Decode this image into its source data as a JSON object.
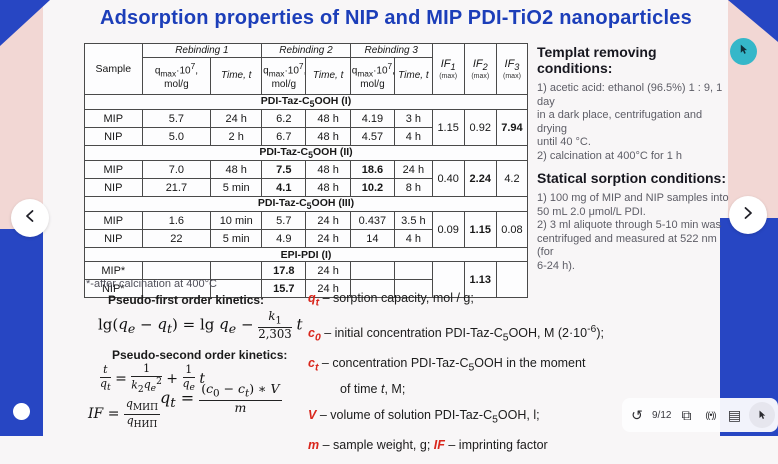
{
  "title": "Adsorption properties of NIP and MIP PDI-TiO2 nanoparticles",
  "table": {
    "col_sample": "Sample",
    "rebinding_headers": [
      "Rebinding 1",
      "Rebinding 2",
      "Rebinding 3"
    ],
    "q_header": "q<sub>max</sub>·10<sup>7</sup>, mol/g",
    "time_header": "Time, <i>t</i>",
    "if_headers": [
      {
        "main": "<i>IF</i><sub>1</sub>",
        "sub": "(max)"
      },
      {
        "main": "<i>IF</i><sub>2</sub>",
        "sub": "(max)"
      },
      {
        "main": "<i>IF</i><sub>3</sub>",
        "sub": "(max)"
      }
    ],
    "sections": [
      {
        "name": "PDI-Taz-C<sub>5</sub>OOH (I)",
        "rows": [
          {
            "sample": "MIP",
            "cells": [
              "5.7",
              "24 h",
              "6.2",
              "48 h",
              "4.19",
              "3 h"
            ]
          },
          {
            "sample": "NIP",
            "cells": [
              "5.0",
              "2 h",
              "6.7",
              "48 h",
              "4.57",
              "4 h"
            ]
          }
        ],
        "if": [
          "1.15",
          "0.92",
          {
            "t": "7.94",
            "b": 1
          }
        ]
      },
      {
        "name": "PDI-Taz-C<sub>5</sub>OOH (II)",
        "rows": [
          {
            "sample": "MIP",
            "cells": [
              "7.0",
              "48 h",
              {
                "t": "7.5",
                "b": 1
              },
              "48 h",
              {
                "t": "18.6",
                "b": 1
              },
              "24 h"
            ]
          },
          {
            "sample": "NIP",
            "cells": [
              "21.7",
              "5 min",
              {
                "t": "4.1",
                "b": 1
              },
              "48 h",
              {
                "t": "10.2",
                "b": 1
              },
              "8 h"
            ]
          }
        ],
        "if": [
          "0.40",
          {
            "t": "2.24",
            "b": 1
          },
          "4.2"
        ]
      },
      {
        "name": "PDI-Taz-C<sub>5</sub>OOH (III)",
        "rows": [
          {
            "sample": "MIP",
            "cells": [
              "1.6",
              "10 min",
              "5.7",
              "24 h",
              "0.437",
              "3.5 h"
            ]
          },
          {
            "sample": "NIP",
            "cells": [
              "22",
              "5 min",
              "4.9",
              "24 h",
              "14",
              "4 h"
            ]
          }
        ],
        "if": [
          "0.09",
          {
            "t": "1.15",
            "b": 1
          },
          "0.08"
        ]
      },
      {
        "name": "EPI-PDI (I)",
        "rows": [
          {
            "sample": "MIP*",
            "cells": [
              "",
              "",
              {
                "t": "17.8",
                "b": 1
              },
              "24 h",
              "",
              ""
            ]
          },
          {
            "sample": "NIP*",
            "cells": [
              "",
              "",
              {
                "t": "15.7",
                "b": 1
              },
              "24 h",
              "",
              ""
            ]
          }
        ],
        "if": [
          "",
          {
            "t": "1.13",
            "b": 1
          },
          ""
        ]
      }
    ],
    "footnote": "*-after calcination at 400°C"
  },
  "template_conditions": {
    "title": "Templat removing conditions:",
    "lines": [
      "1) acetic acid: ethanol (96.5%) 1 : 9, 1 day",
      "in a dark place, centrifugation and drying",
      "until 40 °C.",
      "2) calcination at 400°C for 1 h"
    ]
  },
  "sorption_conditions": {
    "title": "Statical sorption conditions:",
    "lines": [
      "1) 100 mg of MIP and NIP samples into",
      "50 mL 2.0 μmol/L PDI.",
      "2) 3 ml aliquote through 5-10 min was",
      "centrifuged and measured at 522 nm (for",
      "6-24 h)."
    ]
  },
  "kinetics": {
    "first_label": "Pseudo-first order kinetics:",
    "second_label": "Pseudo-second order kinetics:",
    "eq_first": "lg(<i>q<sub>e</sub></i> − <i>q<sub>t</sub></i>) = lg <i>q<sub>e</sub></i> − <span class='fr'><span><i>k</i><sub>1</sub></span><span>2,303</span></span> <i>t</i>",
    "eq_second": "<span class='fr'><span><i>t</i></span><span><i>q<sub>t</sub></i></span></span> = <span class='fr'><span>1</span><span><i>k</i><sub>2</sub><i>q<sub>e</sub></i><sup>2</sup></span></span> + <span class='fr'><span>1</span><span><i>q<sub>e</sub></i></span></span> <i>t</i>",
    "eq_if": "<i>IF</i> = <span class='fr'><span><i>q</i><sub>МИП</sub></span><span><i>q</i><sub>НИП</sub></span></span>",
    "eq_qt": "<i>q<sub>t</sub></i> = <span class='fr'><span>(<i>c</i><sub>0</sub> − <i>c<sub>t</sub></i>) ∗ <i>V</i></span><span><i>m</i></span></span>"
  },
  "defs": [
    {
      "html": "<span class='r'>q<sub>t</sub></span> – sorption capacity, mol / g;"
    },
    {
      "html": "<span class='r'>c<sub>0</sub></span> – initial concentration PDI-Taz-C<sub>5</sub>OOH,  M (2·10<sup>-6</sup>);"
    },
    {
      "html": "<span class='r'>c<sub>t</sub></span> – concentration PDI-Taz-C<sub>5</sub>OOH  in the moment"
    },
    {
      "html": "of time <i>t</i>, M;",
      "cont": 1
    },
    {
      "html": "<span class='r'>V</span> – volume of solution PDI-Taz-C<sub>5</sub>OOH,  l;"
    },
    {
      "html": "<span class='r'>m</span> – sample weight, g; <span class='r'>IF</span> – imprinting factor"
    }
  ],
  "toolbar": {
    "items": [
      {
        "name": "refresh-icon",
        "glyph": "↺"
      },
      {
        "name": "slide-counter",
        "text": "9/12"
      },
      {
        "name": "present-icon",
        "glyph": "⧉"
      },
      {
        "name": "broadcast-icon",
        "glyph": "((•))",
        "broadcast": 1
      },
      {
        "name": "notes-icon",
        "glyph": "▤"
      },
      {
        "name": "pointer-icon",
        "cursor": 1,
        "highlight": 1
      }
    ]
  },
  "colors": {
    "accent_blue": "#2746c3",
    "title_blue": "#1c3eb9",
    "pink": "#f2d7d4",
    "teal": "#35b7c9",
    "red": "#d9261c"
  }
}
